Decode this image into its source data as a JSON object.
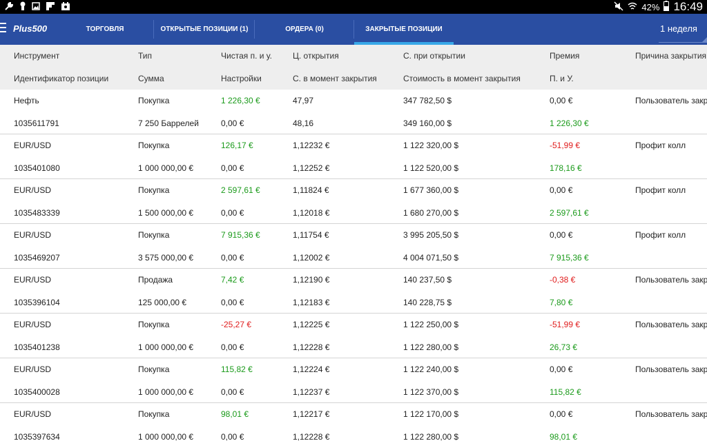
{
  "status_bar": {
    "battery_percent": "42%",
    "time": "16:49"
  },
  "nav": {
    "logo": "Plus500",
    "tabs": [
      {
        "label": "ТОРГОВЛЯ"
      },
      {
        "label": "ОТКРЫТЫЕ ПОЗИЦИИ (1)"
      },
      {
        "label": "ОРДЕРА (0)"
      },
      {
        "label": "ЗАКРЫТЫЕ ПОЗИЦИИ",
        "active": true
      }
    ],
    "period": "1 неделя"
  },
  "table": {
    "header1": [
      "Инструмент",
      "Тип",
      "Чистая п. и у.",
      "Ц. открытия",
      "С. при открытии",
      "Премия",
      "Причина закрытия"
    ],
    "header2": [
      "Идентификатор позиции",
      "Сумма",
      "Настройки",
      "С. в момент закрытия",
      "Стоимость в момент закрытия",
      "П. и У."
    ],
    "colors": {
      "positive": "#1a9a1a",
      "negative": "#e01c1c"
    },
    "rows": [
      {
        "instrument": "Нефть",
        "type": "Покупка",
        "net_pl": "1 226,30 €",
        "open_price": "47,97",
        "open_value": "347 782,50 $",
        "premium": "0,00 €",
        "close_reason": "Пользователь закр",
        "position_id": "1035611791",
        "amount": "7 250 Баррелей",
        "settings": "0,00 €",
        "close_price": "48,16",
        "close_value": "349 160,00 $",
        "pl": "1 226,30 €"
      },
      {
        "instrument": "EUR/USD",
        "type": "Покупка",
        "net_pl": "126,17 €",
        "open_price": "1,12232 €",
        "open_value": "1 122 320,00 $",
        "premium": "-51,99 €",
        "close_reason": "Профит колл",
        "position_id": "1035401080",
        "amount": "1 000 000,00 €",
        "settings": "0,00 €",
        "close_price": "1,12252 €",
        "close_value": "1 122 520,00 $",
        "pl": "178,16 €"
      },
      {
        "instrument": "EUR/USD",
        "type": "Покупка",
        "net_pl": "2 597,61 €",
        "open_price": "1,11824 €",
        "open_value": "1 677 360,00 $",
        "premium": "0,00 €",
        "close_reason": "Профит колл",
        "position_id": "1035483339",
        "amount": "1 500 000,00 €",
        "settings": "0,00 €",
        "close_price": "1,12018 €",
        "close_value": "1 680 270,00 $",
        "pl": "2 597,61 €"
      },
      {
        "instrument": "EUR/USD",
        "type": "Покупка",
        "net_pl": "7 915,36 €",
        "open_price": "1,11754 €",
        "open_value": "3 995 205,50 $",
        "premium": "0,00 €",
        "close_reason": "Профит колл",
        "position_id": "1035469207",
        "amount": "3 575 000,00 €",
        "settings": "0,00 €",
        "close_price": "1,12002 €",
        "close_value": "4 004 071,50 $",
        "pl": "7 915,36 €"
      },
      {
        "instrument": "EUR/USD",
        "type": "Продажа",
        "net_pl": "7,42 €",
        "open_price": "1,12190 €",
        "open_value": "140 237,50 $",
        "premium": "-0,38 €",
        "close_reason": "Пользователь закр",
        "position_id": "1035396104",
        "amount": "125 000,00 €",
        "settings": "0,00 €",
        "close_price": "1,12183 €",
        "close_value": "140 228,75 $",
        "pl": "7,80 €"
      },
      {
        "instrument": "EUR/USD",
        "type": "Покупка",
        "net_pl": "-25,27 €",
        "open_price": "1,12225 €",
        "open_value": "1 122 250,00 $",
        "premium": "-51,99 €",
        "close_reason": "Пользователь закр",
        "position_id": "1035401238",
        "amount": "1 000 000,00 €",
        "settings": "0,00 €",
        "close_price": "1,12228 €",
        "close_value": "1 122 280,00 $",
        "pl": "26,73 €"
      },
      {
        "instrument": "EUR/USD",
        "type": "Покупка",
        "net_pl": "115,82 €",
        "open_price": "1,12224 €",
        "open_value": "1 122 240,00 $",
        "premium": "0,00 €",
        "close_reason": "Пользователь закр",
        "position_id": "1035400028",
        "amount": "1 000 000,00 €",
        "settings": "0,00 €",
        "close_price": "1,12237 €",
        "close_value": "1 122 370,00 $",
        "pl": "115,82 €"
      },
      {
        "instrument": "EUR/USD",
        "type": "Покупка",
        "net_pl": "98,01 €",
        "open_price": "1,12217 €",
        "open_value": "1 122 170,00 $",
        "premium": "0,00 €",
        "close_reason": "Пользователь закр",
        "position_id": "1035397634",
        "amount": "1 000 000,00 €",
        "settings": "0,00 €",
        "close_price": "1,12228 €",
        "close_value": "1 122 280,00 $",
        "pl": "98,01 €"
      }
    ]
  }
}
